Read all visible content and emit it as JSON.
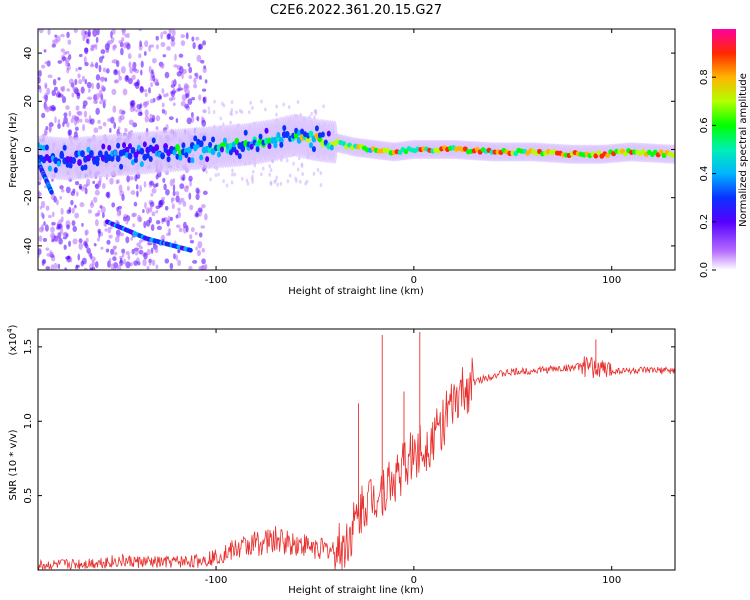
{
  "title": "C2E6.2022.361.20.15.G27",
  "chart_data": [
    {
      "type": "heatmap",
      "xlabel": "Height of straight line (km)",
      "ylabel": "Frequency (Hz)",
      "xlim": [
        -190,
        132
      ],
      "ylim": [
        -50,
        50
      ],
      "xticks": [
        -100,
        0,
        100
      ],
      "xtick_labels": [
        "-100",
        "0",
        "100"
      ],
      "yticks": [
        -40,
        -20,
        0,
        20,
        40
      ],
      "ytick_labels": [
        "-40",
        "-20",
        "0",
        "20",
        "40"
      ],
      "ridge": {
        "x": [
          -190,
          -175,
          -160,
          -145,
          -130,
          -115,
          -100,
          -85,
          -70,
          -60,
          -50,
          -40,
          -30,
          -20,
          -10,
          0,
          20,
          40,
          60,
          80,
          95,
          110,
          132
        ],
        "y": [
          -3,
          -4,
          -3,
          -2,
          -1,
          0,
          1,
          2,
          4,
          6,
          4,
          3,
          1,
          0,
          -1,
          0,
          0,
          -1,
          -1,
          -2,
          -2,
          -1,
          -2
        ]
      },
      "branches": [
        {
          "x": [
            -190,
            -183
          ],
          "y": [
            -5,
            -18
          ]
        },
        {
          "x": [
            -155,
            -135,
            -112
          ],
          "y": [
            -30,
            -37,
            -42
          ]
        }
      ],
      "colorbar": {
        "label": "Normalized spectral amplitude",
        "ticks": [
          0.0,
          0.2,
          0.4,
          0.6,
          0.8
        ],
        "tick_labels": [
          "0.0",
          "0.2",
          "0.4",
          "0.6",
          "0.8"
        ],
        "range": [
          0,
          1
        ]
      }
    },
    {
      "type": "line",
      "xlabel": "Height of straight line (km)",
      "ylabel": "SNR (10 * v/v)",
      "yscale_label": "(x10",
      "yscale_exp": "4",
      "yscale_close": ")",
      "xlim": [
        -190,
        132
      ],
      "ylim": [
        0,
        1.62
      ],
      "xticks": [
        -100,
        0,
        100
      ],
      "xtick_labels": [
        "-100",
        "0",
        "100"
      ],
      "yticks": [
        0.5,
        1.0,
        1.5
      ],
      "ytick_labels": [
        "0.5",
        "1.0",
        "1.5"
      ],
      "series": [
        {
          "color": "#e8312f",
          "x": [
            -190,
            -170,
            -150,
            -130,
            -110,
            -100,
            -90,
            -80,
            -70,
            -60,
            -50,
            -40,
            -35,
            -30,
            -25,
            -20,
            -15,
            -10,
            -5,
            0,
            5,
            10,
            15,
            20,
            25,
            30,
            40,
            50,
            60,
            70,
            80,
            85,
            90,
            95,
            100,
            110,
            120,
            132
          ],
          "y": [
            0.03,
            0.04,
            0.06,
            0.05,
            0.06,
            0.09,
            0.14,
            0.18,
            0.2,
            0.18,
            0.15,
            0.13,
            0.16,
            0.3,
            0.45,
            0.5,
            0.55,
            0.6,
            0.7,
            0.78,
            0.82,
            0.9,
            1.0,
            1.1,
            1.2,
            1.26,
            1.31,
            1.33,
            1.34,
            1.35,
            1.36,
            1.37,
            1.36,
            1.35,
            1.34,
            1.34,
            1.34,
            1.34
          ],
          "spikes": [
            {
              "x": -16,
              "y": 1.58
            },
            {
              "x": 3,
              "y": 1.6
            },
            {
              "x": -28,
              "y": 1.12
            },
            {
              "x": -5,
              "y": 1.2
            },
            {
              "x": 92,
              "y": 1.55
            }
          ]
        }
      ]
    }
  ]
}
